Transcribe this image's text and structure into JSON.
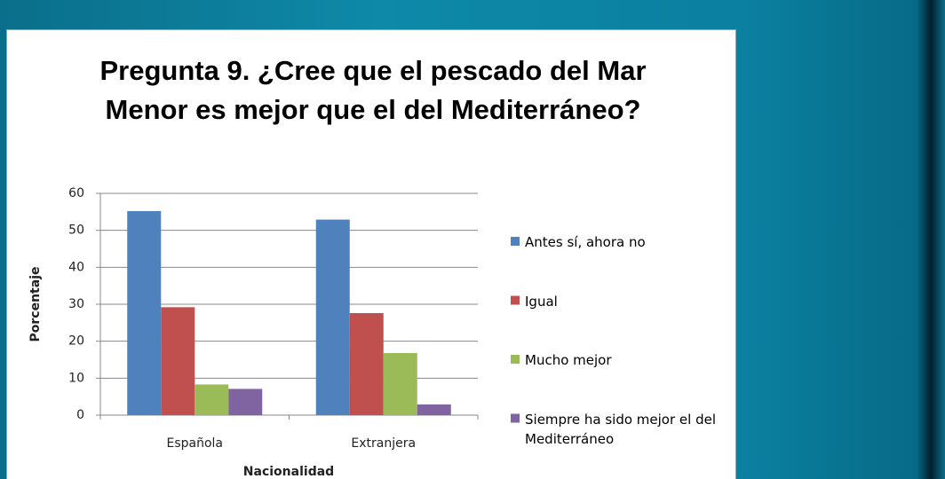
{
  "chart_data": {
    "type": "bar",
    "title": "Pregunta 9. ¿Cree que el pescado del Mar Menor es mejor que el del Mediterráneo?",
    "x_label": "Nacionalidad",
    "y_label": "Porcentaje",
    "categories": [
      "Española",
      "Extranjera"
    ],
    "series": [
      {
        "name": "Antes sí, ahora no",
        "color": "#4f81bd",
        "values": [
          55.2,
          52.9
        ]
      },
      {
        "name": "Igual",
        "color": "#c0504d",
        "values": [
          29.2,
          27.6
        ]
      },
      {
        "name": "Mucho mejor",
        "color": "#9bbb59",
        "values": [
          8.3,
          16.8
        ]
      },
      {
        "name": "Siempre ha sido mejor el del Mediterráneo",
        "color": "#8064a2",
        "values": [
          7.1,
          2.9
        ]
      }
    ],
    "ylim": [
      0,
      60
    ],
    "yticks": [
      0,
      10,
      20,
      30,
      40,
      50,
      60
    ],
    "grid": true,
    "legend": "right"
  }
}
